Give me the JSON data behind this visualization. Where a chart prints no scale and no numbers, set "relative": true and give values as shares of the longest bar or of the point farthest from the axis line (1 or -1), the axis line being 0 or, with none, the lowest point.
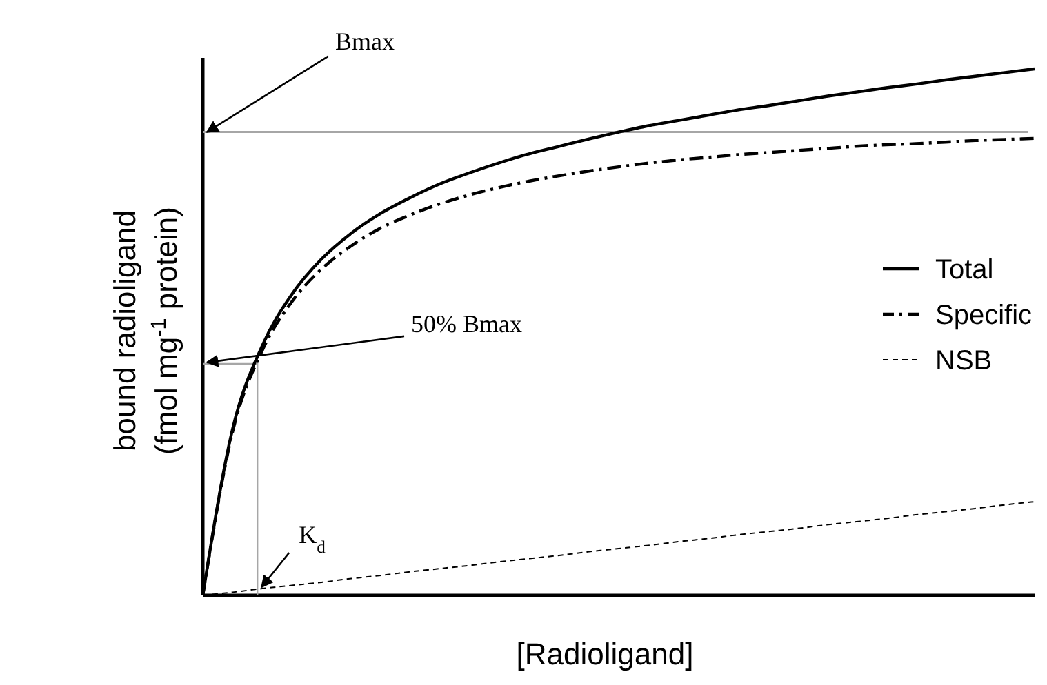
{
  "chart_data": {
    "type": "line",
    "relative": true,
    "xlabel": "[Radioligand]",
    "ylabel": "bound radioligand\n(fmol mg$^{-1}$ protein)",
    "legend": "right",
    "grid": false,
    "tick_labels": false,
    "categories": [
      null,
      null,
      null,
      null,
      null,
      null,
      null,
      null,
      null,
      null,
      null,
      null,
      null,
      null,
      null,
      null,
      null,
      null,
      null,
      null,
      null,
      null,
      null,
      null,
      null,
      null,
      null,
      null,
      null
    ],
    "series": [
      {
        "name": "Total",
        "color": "#000000",
        "line_style": "solid",
        "values": [
          0,
          0.315,
          0.474,
          0.572,
          0.639,
          0.688,
          0.726,
          0.756,
          0.782,
          0.803,
          0.822,
          0.839,
          0.853,
          0.867,
          0.88,
          0.892,
          0.902,
          0.912,
          0.922,
          0.93,
          0.939,
          0.948,
          0.956,
          0.964,
          0.971,
          0.979,
          0.986,
          0.993,
          1
        ]
      },
      {
        "name": "Specific",
        "color": "#000000",
        "line_style": "dashdot",
        "values": [
          0,
          0.31,
          0.465,
          0.558,
          0.62,
          0.664,
          0.698,
          0.723,
          0.744,
          0.761,
          0.775,
          0.787,
          0.797,
          0.806,
          0.814,
          0.821,
          0.827,
          0.832,
          0.837,
          0.841,
          0.845,
          0.849,
          0.853,
          0.856,
          0.858,
          0.861,
          0.864,
          0.866,
          0.868
        ]
      },
      {
        "name": "NSB",
        "color": "#000000",
        "line_style": "dashed",
        "values": [
          0,
          0.006,
          0.013,
          0.019,
          0.025,
          0.032,
          0.038,
          0.045,
          0.051,
          0.057,
          0.064,
          0.07,
          0.076,
          0.083,
          0.089,
          0.095,
          0.102,
          0.108,
          0.115,
          0.121,
          0.127,
          0.134,
          0.14,
          0.146,
          0.153,
          0.159,
          0.165,
          0.172,
          0.178
        ]
      }
    ],
    "ref_lines": [
      {
        "axis": "y",
        "value": 0.88,
        "label": "Bmax",
        "color": "#a6a6a6"
      }
    ],
    "annotations": [
      "50% Bmax",
      "K$_{d}$"
    ]
  }
}
